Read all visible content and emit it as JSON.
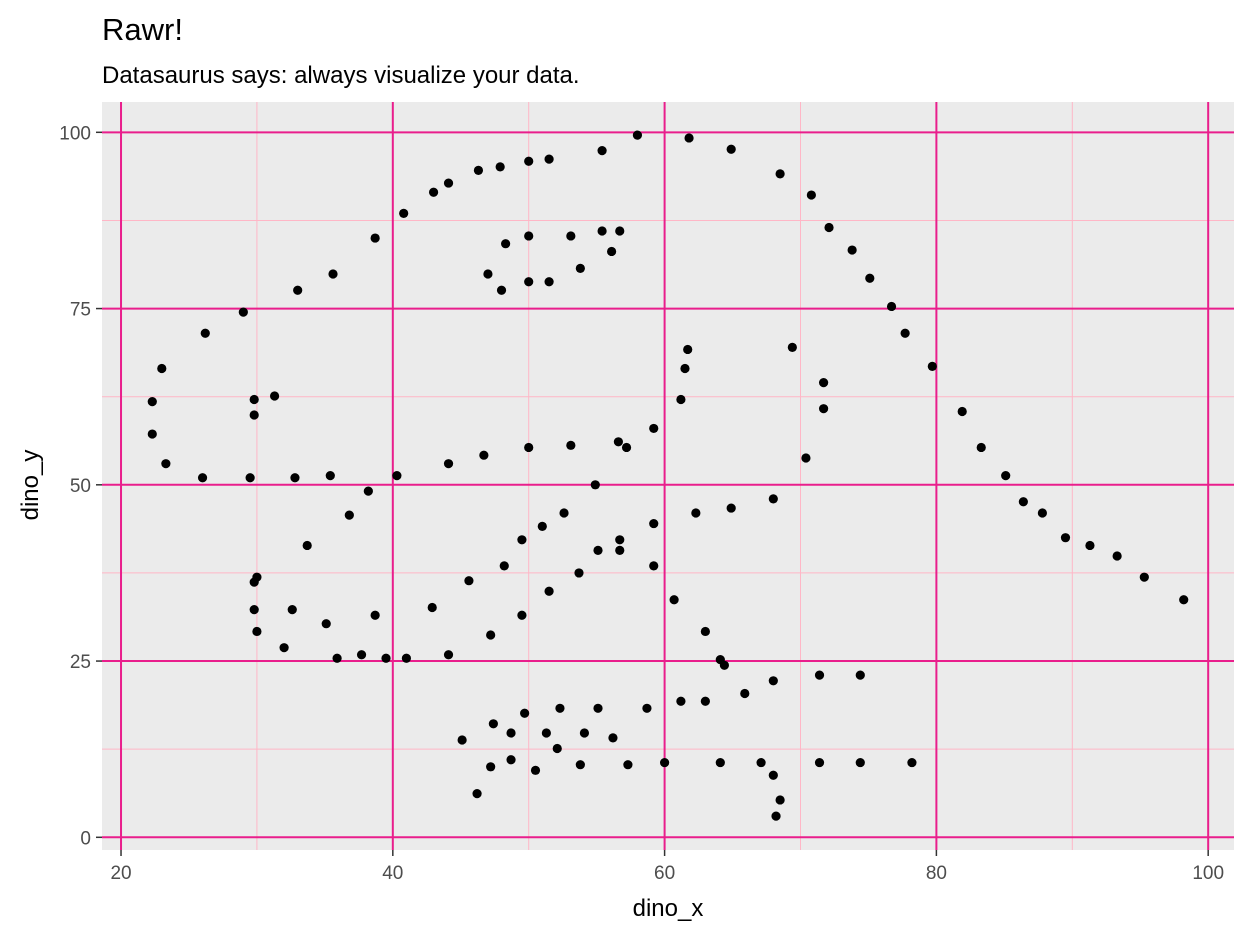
{
  "chart_data": {
    "type": "scatter",
    "title": "Rawr!",
    "subtitle": "Datasaurus says: always visualize your data.",
    "xlabel": "dino_x",
    "ylabel": "dino_y",
    "xlim": [
      18.6,
      101.9
    ],
    "ylim": [
      -1.8,
      104.3
    ],
    "x_ticks": [
      20,
      40,
      60,
      80,
      100
    ],
    "y_ticks": [
      0,
      25,
      50,
      75,
      100
    ],
    "grid": true,
    "legend": "none",
    "colors": {
      "panel_background": "#ebebeb",
      "major_grid": "#e91e8c",
      "minor_grid": "#ffb6c6",
      "point": "#000000",
      "tick_label": "#4d4d4d",
      "tick_mark": "#333333"
    },
    "points": [
      [
        22.3,
        61.8
      ],
      [
        22.3,
        57.2
      ],
      [
        23.0,
        66.5
      ],
      [
        23.3,
        53.0
      ],
      [
        26.0,
        51.0
      ],
      [
        26.2,
        71.5
      ],
      [
        29.0,
        74.5
      ],
      [
        29.5,
        51.0
      ],
      [
        29.8,
        62.1
      ],
      [
        29.8,
        59.9
      ],
      [
        29.8,
        36.2
      ],
      [
        29.8,
        32.3
      ],
      [
        30.0,
        36.9
      ],
      [
        30.0,
        29.2
      ],
      [
        31.3,
        62.6
      ],
      [
        32.0,
        26.9
      ],
      [
        32.6,
        32.3
      ],
      [
        32.8,
        51.0
      ],
      [
        33.0,
        77.6
      ],
      [
        33.7,
        41.4
      ],
      [
        35.1,
        30.3
      ],
      [
        35.4,
        51.3
      ],
      [
        35.6,
        79.9
      ],
      [
        35.9,
        25.4
      ],
      [
        36.8,
        45.7
      ],
      [
        37.7,
        25.9
      ],
      [
        38.2,
        49.1
      ],
      [
        38.7,
        31.5
      ],
      [
        38.7,
        85.0
      ],
      [
        39.5,
        25.4
      ],
      [
        40.3,
        51.3
      ],
      [
        40.8,
        88.5
      ],
      [
        41.0,
        25.4
      ],
      [
        42.9,
        32.6
      ],
      [
        43.0,
        91.5
      ],
      [
        44.1,
        53.0
      ],
      [
        44.1,
        25.9
      ],
      [
        44.1,
        92.8
      ],
      [
        45.1,
        13.8
      ],
      [
        45.6,
        36.4
      ],
      [
        46.2,
        6.2
      ],
      [
        46.3,
        94.6
      ],
      [
        46.7,
        54.2
      ],
      [
        47.0,
        79.9
      ],
      [
        47.2,
        28.7
      ],
      [
        47.2,
        10.0
      ],
      [
        47.4,
        16.1
      ],
      [
        47.9,
        95.1
      ],
      [
        48.0,
        77.6
      ],
      [
        48.2,
        38.5
      ],
      [
        48.3,
        84.2
      ],
      [
        48.7,
        14.8
      ],
      [
        48.7,
        11.0
      ],
      [
        49.5,
        42.2
      ],
      [
        49.5,
        31.5
      ],
      [
        49.7,
        17.6
      ],
      [
        50.0,
        85.3
      ],
      [
        50.0,
        95.9
      ],
      [
        50.0,
        78.8
      ],
      [
        50.0,
        55.3
      ],
      [
        50.5,
        9.5
      ],
      [
        51.0,
        44.1
      ],
      [
        51.3,
        14.8
      ],
      [
        51.5,
        78.8
      ],
      [
        51.5,
        34.9
      ],
      [
        51.5,
        96.2
      ],
      [
        52.1,
        12.6
      ],
      [
        52.3,
        18.3
      ],
      [
        52.6,
        46.0
      ],
      [
        53.1,
        85.3
      ],
      [
        53.1,
        55.6
      ],
      [
        53.7,
        37.5
      ],
      [
        53.8,
        80.7
      ],
      [
        53.8,
        10.3
      ],
      [
        54.1,
        14.8
      ],
      [
        54.9,
        50.0
      ],
      [
        55.1,
        18.3
      ],
      [
        55.1,
        40.7
      ],
      [
        55.4,
        97.4
      ],
      [
        55.4,
        86.0
      ],
      [
        56.1,
        83.1
      ],
      [
        56.2,
        14.1
      ],
      [
        56.6,
        56.1
      ],
      [
        56.7,
        86.0
      ],
      [
        56.7,
        42.2
      ],
      [
        56.7,
        40.7
      ],
      [
        57.2,
        55.3
      ],
      [
        57.3,
        10.3
      ],
      [
        58.0,
        99.6
      ],
      [
        58.7,
        18.3
      ],
      [
        59.2,
        58.0
      ],
      [
        59.2,
        44.5
      ],
      [
        59.2,
        38.5
      ],
      [
        60.0,
        10.6
      ],
      [
        60.7,
        33.7
      ],
      [
        61.2,
        62.1
      ],
      [
        61.2,
        19.3
      ],
      [
        61.5,
        66.5
      ],
      [
        61.7,
        69.2
      ],
      [
        61.8,
        99.2
      ],
      [
        62.3,
        46.0
      ],
      [
        63.0,
        29.2
      ],
      [
        63.0,
        19.3
      ],
      [
        64.1,
        25.2
      ],
      [
        64.1,
        10.6
      ],
      [
        64.4,
        24.4
      ],
      [
        64.9,
        97.6
      ],
      [
        64.9,
        46.7
      ],
      [
        65.9,
        20.4
      ],
      [
        67.1,
        10.6
      ],
      [
        68.0,
        22.2
      ],
      [
        68.0,
        48.0
      ],
      [
        68.0,
        8.8
      ],
      [
        68.2,
        3.0
      ],
      [
        68.5,
        94.1
      ],
      [
        68.5,
        5.3
      ],
      [
        69.4,
        69.5
      ],
      [
        70.4,
        53.8
      ],
      [
        70.8,
        91.1
      ],
      [
        71.4,
        23.0
      ],
      [
        71.4,
        10.6
      ],
      [
        71.7,
        60.8
      ],
      [
        71.7,
        64.5
      ],
      [
        72.1,
        86.5
      ],
      [
        73.8,
        83.3
      ],
      [
        74.4,
        23.0
      ],
      [
        74.4,
        10.6
      ],
      [
        75.1,
        79.3
      ],
      [
        76.7,
        75.3
      ],
      [
        77.7,
        71.5
      ],
      [
        78.2,
        10.6
      ],
      [
        79.7,
        66.8
      ],
      [
        81.9,
        60.4
      ],
      [
        83.3,
        55.3
      ],
      [
        85.1,
        51.3
      ],
      [
        86.4,
        47.6
      ],
      [
        87.8,
        46.0
      ],
      [
        89.5,
        42.5
      ],
      [
        91.3,
        41.4
      ],
      [
        93.3,
        39.9
      ],
      [
        95.3,
        36.9
      ],
      [
        98.2,
        33.7
      ]
    ]
  }
}
